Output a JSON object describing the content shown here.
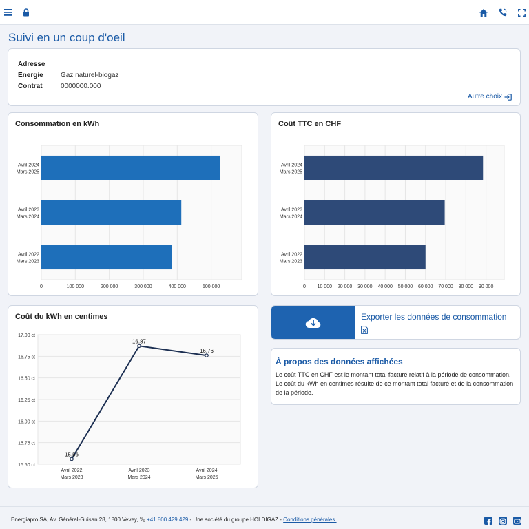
{
  "header": {
    "icons": [
      "menu-icon",
      "lock-icon",
      "home-icon",
      "phone-icon",
      "fullscreen-icon"
    ]
  },
  "page": {
    "title": "Suivi en un coup d'oeil"
  },
  "info": {
    "address_label": "Adresse",
    "address_value": "",
    "energy_label": "Energie",
    "energy_value": "Gaz naturel-biogaz",
    "contract_label": "Contrat",
    "contract_value": "0000000.000",
    "other_choice": "Autre choix"
  },
  "chart_data": [
    {
      "type": "bar",
      "orientation": "horizontal",
      "title": "Consommation en kWh",
      "categories": [
        "Avril 2024 Mars 2025",
        "Avril 2023 Mars 2024",
        "Avril 2022 Mars 2023"
      ],
      "category_lines": [
        [
          "Avril 2024",
          "Mars 2025"
        ],
        [
          "Avril 2023",
          "Mars 2024"
        ],
        [
          "Avril 2022",
          "Mars 2023"
        ]
      ],
      "values": [
        527000,
        412000,
        385000
      ],
      "xlim": [
        0,
        590000
      ],
      "ticks": [
        0,
        100000,
        200000,
        300000,
        400000,
        500000
      ],
      "tick_labels": [
        "0",
        "100 000",
        "200 000",
        "300 000",
        "400 000",
        "500 000"
      ],
      "color": "#1e6fba",
      "grid": true
    },
    {
      "type": "bar",
      "orientation": "horizontal",
      "title": "Coût TTC en CHF",
      "categories": [
        "Avril 2024 Mars 2025",
        "Avril 2023 Mars 2024",
        "Avril 2022 Mars 2023"
      ],
      "category_lines": [
        [
          "Avril 2024",
          "Mars 2025"
        ],
        [
          "Avril 2023",
          "Mars 2024"
        ],
        [
          "Avril 2022",
          "Mars 2023"
        ]
      ],
      "values": [
        88500,
        69500,
        60000
      ],
      "xlim": [
        0,
        99000
      ],
      "ticks": [
        0,
        10000,
        20000,
        30000,
        40000,
        50000,
        60000,
        70000,
        80000,
        90000
      ],
      "tick_labels": [
        "0",
        "10 000",
        "20 000",
        "30 000",
        "40 000",
        "50 000",
        "60 000",
        "70 000",
        "80 000",
        "90 000"
      ],
      "color": "#2e4a78",
      "grid": true
    },
    {
      "type": "line",
      "title": "Coût du kWh en centimes",
      "categories": [
        "Avril 2022 Mars 2023",
        "Avril 2023 Mars 2024",
        "Avril 2024 Mars 2025"
      ],
      "category_lines": [
        [
          "Avril 2022",
          "Mars 2023"
        ],
        [
          "Avril 2023",
          "Mars 2024"
        ],
        [
          "Avril 2024",
          "Mars 2025"
        ]
      ],
      "values": [
        15.56,
        16.87,
        16.76
      ],
      "value_labels": [
        "15.56",
        "16.87",
        "16.76"
      ],
      "ylim": [
        15.5,
        17.0
      ],
      "ticks": [
        15.5,
        15.75,
        16.0,
        16.25,
        16.5,
        16.75,
        17.0
      ],
      "tick_labels": [
        "15.50 ct",
        "15.75 ct",
        "16.00 ct",
        "16.25 ct",
        "16.50 ct",
        "16.75 ct",
        "17.00 ct"
      ],
      "color": "#1c2f52",
      "grid": true
    }
  ],
  "export": {
    "label": "Exporter les données de consommation"
  },
  "about": {
    "title": "À propos des données affichées",
    "text": "Le coût TTC en CHF est le montant total facturé relatif à la période de consommation. Le coût du kWh en centimes résulte de ce montant total facturé et de la consommation de la période."
  },
  "footer": {
    "company": "Energiapro SA, Av. Général-Guisan 28, 1800 Vevey,",
    "phone": "+41 800 429 429",
    "group": "- Une société du groupe HOLDIGAZ -",
    "terms": "Conditions générales.",
    "social": [
      "facebook-icon",
      "instagram-icon",
      "youtube-icon"
    ]
  },
  "colors": {
    "accent": "#1a5aa6",
    "export_bg": "#1e63b0"
  }
}
